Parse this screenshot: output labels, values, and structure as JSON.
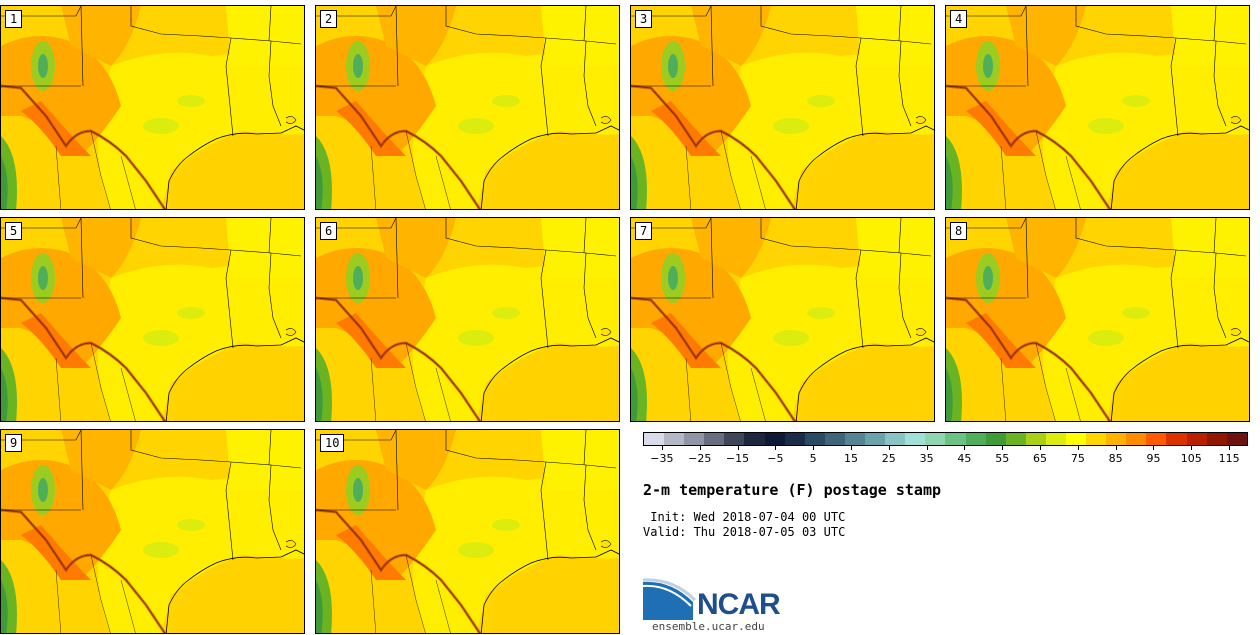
{
  "panels": [
    {
      "label": "1"
    },
    {
      "label": "2"
    },
    {
      "label": "3"
    },
    {
      "label": "4"
    },
    {
      "label": "5"
    },
    {
      "label": "6"
    },
    {
      "label": "7"
    },
    {
      "label": "8"
    },
    {
      "label": "9"
    },
    {
      "label": "10"
    }
  ],
  "colorbar": {
    "colors": [
      "#d9dce8",
      "#b4b8c6",
      "#8f95a5",
      "#676e80",
      "#3e4757",
      "#1d2840",
      "#0c1a36",
      "#1b2c4a",
      "#2d4a63",
      "#3f6678",
      "#548593",
      "#6aa3ab",
      "#88c4c4",
      "#a1e0d6",
      "#8fd6b0",
      "#6cc285",
      "#4fae59",
      "#3f9a38",
      "#6ab424",
      "#a8d116",
      "#dcec0e",
      "#ffff00",
      "#ffd700",
      "#ffb200",
      "#ff8c00",
      "#ff5a00",
      "#dc3200",
      "#b82000",
      "#901800",
      "#6c1210"
    ],
    "tick_labels": [
      "−35",
      "−25",
      "−15",
      "−5",
      "5",
      "15",
      "25",
      "35",
      "45",
      "55",
      "65",
      "75",
      "85",
      "95",
      "105",
      "115"
    ],
    "range": [
      -40,
      120
    ]
  },
  "title": "2-m temperature (F) postage stamp",
  "init": " Init: Wed 2018-07-04 00 UTC",
  "valid": "Valid: Thu 2018-07-05 03 UTC",
  "logo": {
    "text": "NCAR",
    "url": "ensemble.ucar.edu"
  }
}
